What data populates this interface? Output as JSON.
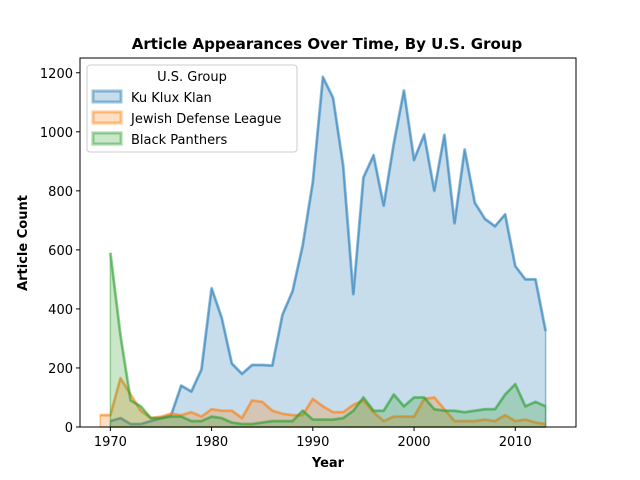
{
  "chart_data": {
    "type": "area",
    "title": "Article Appearances Over Time, By U.S. Group",
    "xlabel": "Year",
    "ylabel": "Article Count",
    "xlim": [
      1967,
      2016
    ],
    "ylim": [
      0,
      1250
    ],
    "xticks": [
      "1970",
      "1980",
      "1990",
      "2000",
      "2010"
    ],
    "yticks": [
      "0",
      "200",
      "400",
      "600",
      "800",
      "1000",
      "1200"
    ],
    "legend": {
      "title": "U.S. Group",
      "placement": "top-left"
    },
    "series": [
      {
        "name": "Ku Klux Klan",
        "color": "#1f77b4",
        "x": [
          1970,
          1971,
          1972,
          1973,
          1974,
          1975,
          1976,
          1977,
          1978,
          1979,
          1980,
          1981,
          1982,
          1983,
          1984,
          1985,
          1986,
          1987,
          1988,
          1989,
          1990,
          1991,
          1992,
          1993,
          1994,
          1995,
          1996,
          1997,
          1998,
          1999,
          2000,
          2001,
          2002,
          2003,
          2004,
          2005,
          2006,
          2007,
          2008,
          2009,
          2010,
          2011,
          2012,
          2013
        ],
        "values": [
          20,
          30,
          10,
          10,
          20,
          30,
          40,
          140,
          120,
          195,
          470,
          370,
          215,
          180,
          210,
          210,
          208,
          380,
          460,
          615,
          830,
          1185,
          1115,
          885,
          450,
          845,
          920,
          750,
          960,
          1140,
          905,
          990,
          800,
          990,
          690,
          940,
          760,
          705,
          680,
          720,
          545,
          500,
          500,
          325
        ]
      },
      {
        "name": "Jewish Defense League",
        "color": "#ff7f0e",
        "x": [
          1969,
          1970,
          1971,
          1972,
          1973,
          1974,
          1975,
          1976,
          1977,
          1978,
          1979,
          1980,
          1981,
          1982,
          1983,
          1984,
          1985,
          1986,
          1987,
          1988,
          1989,
          1990,
          1991,
          1992,
          1993,
          1994,
          1995,
          1996,
          1997,
          1998,
          1999,
          2000,
          2001,
          2002,
          2003,
          2004,
          2005,
          2006,
          2007,
          2008,
          2009,
          2010,
          2011,
          2012,
          2013
        ],
        "values": [
          40,
          40,
          165,
          110,
          55,
          30,
          35,
          45,
          40,
          50,
          35,
          60,
          55,
          55,
          30,
          90,
          85,
          55,
          45,
          40,
          40,
          95,
          70,
          50,
          50,
          75,
          90,
          50,
          20,
          35,
          35,
          35,
          95,
          100,
          60,
          20,
          20,
          20,
          25,
          20,
          40,
          20,
          25,
          15,
          10
        ]
      },
      {
        "name": "Black Panthers",
        "color": "#2ca02c",
        "x": [
          1970,
          1971,
          1972,
          1973,
          1974,
          1975,
          1976,
          1977,
          1978,
          1979,
          1980,
          1981,
          1982,
          1983,
          1984,
          1985,
          1986,
          1987,
          1988,
          1989,
          1990,
          1991,
          1992,
          1993,
          1994,
          1995,
          1996,
          1997,
          1998,
          1999,
          2000,
          2001,
          2002,
          2003,
          2004,
          2005,
          2006,
          2007,
          2008,
          2009,
          2010,
          2011,
          2012,
          2013
        ],
        "values": [
          590,
          310,
          90,
          70,
          30,
          30,
          35,
          35,
          20,
          20,
          35,
          30,
          15,
          10,
          10,
          15,
          20,
          20,
          20,
          55,
          25,
          25,
          25,
          30,
          55,
          100,
          55,
          55,
          110,
          70,
          100,
          100,
          60,
          55,
          55,
          50,
          55,
          60,
          60,
          110,
          145,
          70,
          85,
          70
        ]
      }
    ]
  }
}
